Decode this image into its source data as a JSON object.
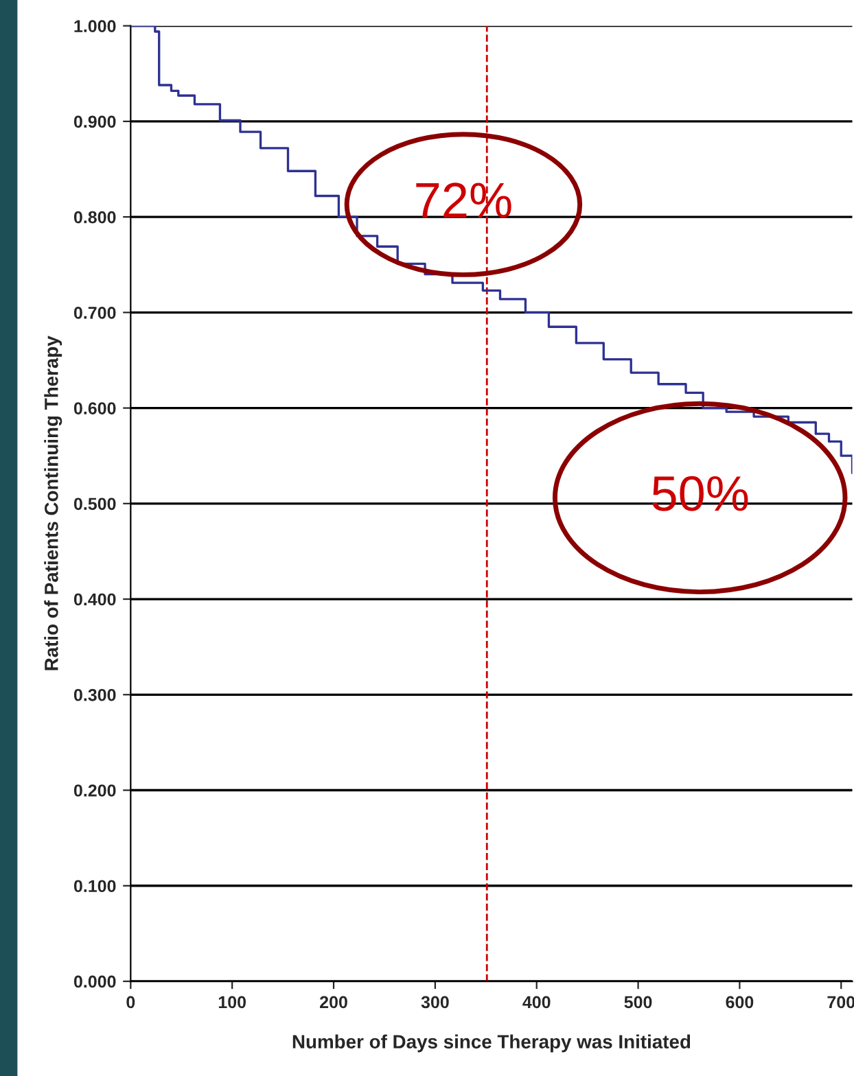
{
  "chart_data": {
    "type": "step",
    "xlabel": "Number of Days since Therapy was Initiated",
    "ylabel": "Ratio of Patients Continuing Therapy",
    "series": [
      {
        "color": "#2e3192",
        "x": [
          0,
          17.5,
          24,
          28,
          28,
          40,
          47,
          63,
          88,
          108,
          128,
          155,
          182,
          205,
          223,
          243,
          263,
          290,
          317,
          347,
          364,
          389,
          412,
          439,
          466,
          493,
          520,
          547,
          564,
          587,
          614,
          648,
          675,
          688,
          700,
          711
        ],
        "values": [
          1.0,
          1.0,
          0.994,
          0.993,
          0.938,
          0.932,
          0.927,
          0.918,
          0.901,
          0.889,
          0.872,
          0.848,
          0.822,
          0.8,
          0.78,
          0.769,
          0.751,
          0.74,
          0.731,
          0.723,
          0.714,
          0.7,
          0.685,
          0.668,
          0.651,
          0.637,
          0.625,
          0.616,
          0.6,
          0.596,
          0.591,
          0.585,
          0.573,
          0.565,
          0.55,
          0.532
        ]
      }
    ],
    "xlim": [
      0,
      711
    ],
    "xticks": [
      0,
      100,
      200,
      300,
      400,
      500,
      600,
      700
    ],
    "ylim": [
      0,
      1
    ],
    "yticks": [
      {
        "value": 0,
        "label": "0.000"
      },
      {
        "value": 0.1,
        "label": "0.100"
      },
      {
        "value": 0.2,
        "label": "0.200"
      },
      {
        "value": 0.3,
        "label": "0.300"
      },
      {
        "value": 0.4,
        "label": "0.400"
      },
      {
        "value": 0.5,
        "label": "0.500"
      },
      {
        "value": 0.6,
        "label": "0.600"
      },
      {
        "value": 0.7,
        "label": "0.700"
      },
      {
        "value": 0.8,
        "label": "0.800"
      },
      {
        "value": 0.9,
        "label": "0.900"
      },
      {
        "value": 1,
        "label": "1.000"
      }
    ],
    "grid": "y",
    "ref_lines": [
      {
        "axis": "x",
        "value": 351,
        "color": "#cc0000",
        "line_style": "dashed"
      }
    ],
    "annotations": [
      "72%",
      "50%"
    ]
  }
}
